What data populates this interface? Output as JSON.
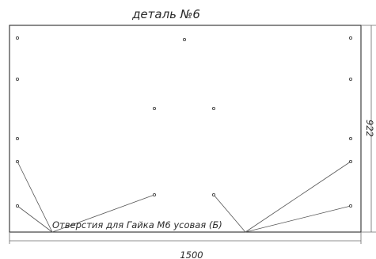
{
  "drawing": {
    "title": "деталь №6",
    "callout": "Отверстия для Гайка М6 усовая (Б)",
    "width_dimension": "1500",
    "height_dimension": "922"
  },
  "colors": {
    "line": "#2c2c2c",
    "text": "#2a2a2a",
    "background": "#ffffff"
  }
}
